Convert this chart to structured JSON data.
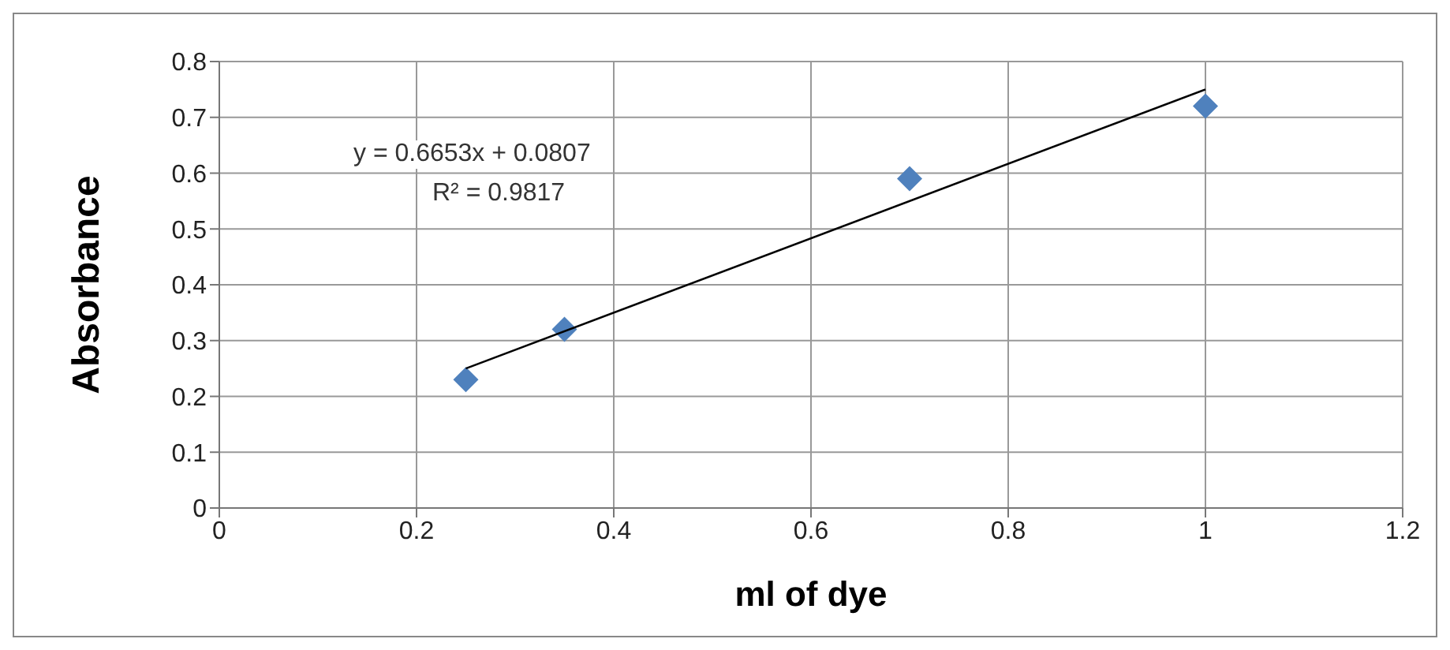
{
  "chart_data": {
    "type": "scatter",
    "xlabel": "ml of dye",
    "ylabel": "Absorbance",
    "series": [
      {
        "color": "#4f81bd",
        "marker": "diamond",
        "x": [
          0.25,
          0.35,
          0.7,
          1.0
        ],
        "values": [
          0.23,
          0.32,
          0.59,
          0.72
        ]
      },
      {
        "type": "line",
        "color": "#000000",
        "marker": "none",
        "x": [
          0.25,
          1.0
        ],
        "values": [
          0.25,
          0.75
        ]
      }
    ],
    "annotations": [
      "y = 0.6653x + 0.0807",
      "R² = 0.9817"
    ],
    "xlim": [
      0,
      1.2
    ],
    "xticks": [
      0,
      0.2,
      0.4,
      0.6,
      0.8,
      1,
      1.2
    ],
    "ylim": [
      0,
      0.8
    ],
    "yticks": [
      0,
      0.1,
      0.2,
      0.3,
      0.4,
      0.5,
      0.6,
      0.7,
      0.8
    ],
    "grid": true,
    "legend": false
  }
}
